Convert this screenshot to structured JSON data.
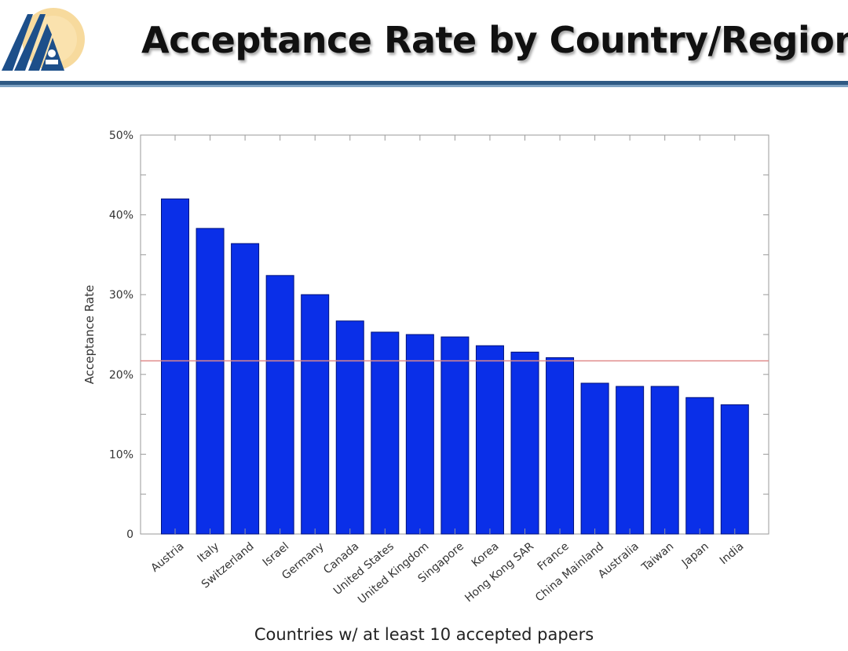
{
  "slide": {
    "title": "Acceptance Rate by Country/Region",
    "caption": "Countries w/ at least 10 accepted papers"
  },
  "logo": {
    "icon": "conference-logo-icon",
    "colors": {
      "primary": "#1d4f8a",
      "accent": "#f3c76a"
    }
  },
  "chart_data": {
    "type": "bar",
    "categories": [
      "Austria",
      "Italy",
      "Switzerland",
      "Israel",
      "Germany",
      "Canada",
      "United States",
      "United Kingdom",
      "Singapore",
      "Korea",
      "Hong Kong SAR",
      "France",
      "China Mainland",
      "Australia",
      "Taiwan",
      "Japan",
      "India"
    ],
    "values": [
      42.0,
      38.3,
      36.4,
      32.4,
      30.0,
      26.7,
      25.3,
      25.0,
      24.7,
      23.6,
      22.8,
      22.1,
      18.9,
      18.5,
      18.5,
      17.1,
      16.2
    ],
    "unit": "%",
    "ylabel": "Acceptance Rate",
    "xlabel": "Countries w/ at least 10 accepted papers",
    "ylim": [
      0,
      50
    ],
    "yticks": [
      0,
      10,
      20,
      30,
      40,
      50
    ],
    "ytick_labels": [
      "0",
      "10%",
      "20%",
      "30%",
      "40%",
      "50%"
    ],
    "reference_line": {
      "value": 21.7,
      "color": "#e08a8a"
    },
    "bar_color": "#0a2fe8",
    "grid": false
  }
}
